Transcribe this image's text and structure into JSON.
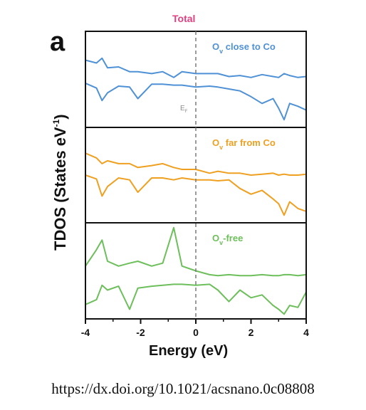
{
  "figure": {
    "title": "Total",
    "panel_letter": "a",
    "ylabel_main": "TDOS (States eV",
    "ylabel_sup": "-1",
    "ylabel_close": ")",
    "xlabel": "Energy (eV)",
    "source": "https://dx.doi.org/10.1021/acsnano.0c08808",
    "fermi_label": "E",
    "fermi_sub": "F",
    "title_color": "#e0407f"
  },
  "chart_data": {
    "type": "line",
    "xlim": [
      -4,
      4
    ],
    "x_ticks": [
      -4,
      -2,
      0,
      2,
      4
    ],
    "x_tick_labels": [
      "-4",
      "-2",
      "0",
      "2",
      "4"
    ],
    "fermi_level": 0,
    "grid": false,
    "x": [
      -4.0,
      -3.6,
      -3.4,
      -3.2,
      -2.8,
      -2.4,
      -2.1,
      -1.6,
      -1.2,
      -0.8,
      -0.5,
      0.0,
      0.5,
      0.8,
      1.2,
      1.6,
      2.0,
      2.4,
      2.8,
      3.0,
      3.2,
      3.4,
      3.7,
      4.0
    ],
    "panels": [
      {
        "label_main": "O",
        "label_sub": "v",
        "label_rest": " close to Co",
        "color": "#4f91d6",
        "ylim": [
          0,
          1
        ],
        "series": [
          {
            "values": [
              0.7,
              0.67,
              0.72,
              0.62,
              0.63,
              0.58,
              0.58,
              0.56,
              0.58,
              0.52,
              0.58,
              0.56,
              0.56,
              0.56,
              0.53,
              0.54,
              0.52,
              0.55,
              0.53,
              0.52,
              0.56,
              0.54,
              0.52,
              0.53
            ]
          },
          {
            "values": [
              0.46,
              0.41,
              0.28,
              0.36,
              0.43,
              0.42,
              0.3,
              0.45,
              0.45,
              0.44,
              0.44,
              0.42,
              0.43,
              0.42,
              0.4,
              0.38,
              0.32,
              0.25,
              0.3,
              0.2,
              0.08,
              0.25,
              0.22,
              0.18
            ]
          }
        ]
      },
      {
        "label_main": "O",
        "label_sub": "v",
        "label_rest": " far from Co",
        "color": "#f0a020",
        "ylim": [
          0,
          1
        ],
        "series": [
          {
            "values": [
              0.73,
              0.68,
              0.62,
              0.65,
              0.62,
              0.62,
              0.58,
              0.6,
              0.62,
              0.58,
              0.56,
              0.56,
              0.52,
              0.54,
              0.52,
              0.52,
              0.5,
              0.51,
              0.52,
              0.5,
              0.51,
              0.5,
              0.5,
              0.51
            ]
          },
          {
            "values": [
              0.5,
              0.46,
              0.28,
              0.38,
              0.47,
              0.45,
              0.32,
              0.47,
              0.47,
              0.45,
              0.47,
              0.45,
              0.45,
              0.44,
              0.45,
              0.36,
              0.3,
              0.34,
              0.25,
              0.2,
              0.08,
              0.22,
              0.15,
              0.12
            ]
          }
        ]
      },
      {
        "label_main": "O",
        "label_sub": "v",
        "label_rest": "-free",
        "color": "#6cbf5a",
        "ylim": [
          0,
          1
        ],
        "series": [
          {
            "values": [
              0.55,
              0.72,
              0.82,
              0.6,
              0.55,
              0.58,
              0.6,
              0.55,
              0.58,
              0.95,
              0.55,
              0.5,
              0.46,
              0.45,
              0.46,
              0.45,
              0.45,
              0.46,
              0.45,
              0.45,
              0.46,
              0.46,
              0.45,
              0.46
            ]
          },
          {
            "values": [
              0.15,
              0.2,
              0.35,
              0.3,
              0.34,
              0.1,
              0.32,
              0.34,
              0.35,
              0.36,
              0.36,
              0.35,
              0.36,
              0.3,
              0.18,
              0.3,
              0.22,
              0.25,
              0.14,
              0.1,
              0.05,
              0.14,
              0.12,
              0.28
            ]
          }
        ]
      }
    ]
  }
}
